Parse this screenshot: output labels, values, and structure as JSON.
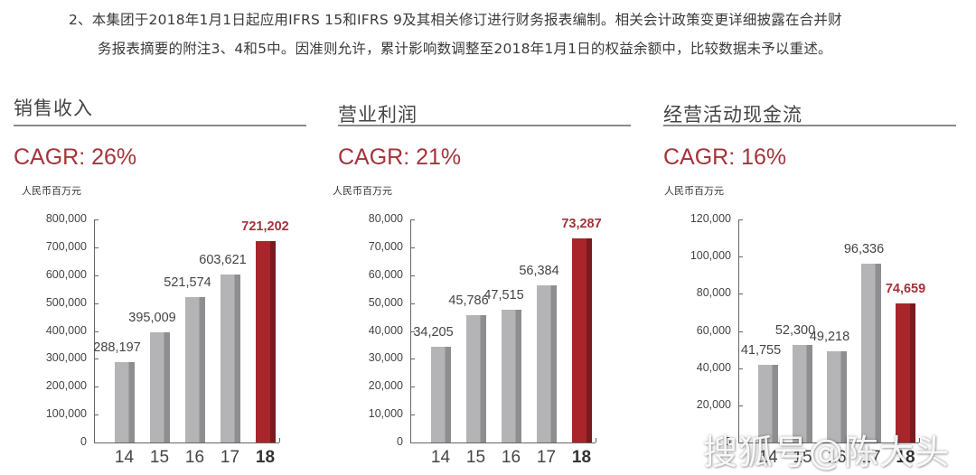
{
  "note": {
    "line1": "2、本集团于2018年1月1日起应用IFRS 15和IFRS 9及其相关修订进行财务报表编制。相关会计政策变更详细披露在合并财",
    "line2": "务报表摘要的附注3、4和5中。因准则允许，累计影响数调整至2018年1月1日的权益余额中，比较数据未予以重述。"
  },
  "colors": {
    "accent_red": "#a8262b",
    "bar_gray": "#b4b4b6",
    "cagr_text": "#a4343a"
  },
  "watermark": "搜狐号@陈大头",
  "chart_data": [
    {
      "type": "bar",
      "title": "销售收入",
      "subtitle": "CAGR: 26%",
      "ylabel": "人民币百万元",
      "xlabel": "",
      "categories": [
        "14",
        "15",
        "16",
        "17",
        "18"
      ],
      "values": [
        288197,
        395009,
        521574,
        603621,
        721202
      ],
      "value_labels": [
        "288,197",
        "395,009",
        "521,574",
        "603,621",
        "721,202"
      ],
      "highlight_index": 4,
      "ylim": [
        0,
        800000
      ],
      "yticks": [
        "0",
        "100,000",
        "200,000",
        "300,000",
        "400,000",
        "500,000",
        "600,000",
        "700,000",
        "800,000"
      ],
      "grid": false,
      "legend": "none"
    },
    {
      "type": "bar",
      "title": "营业利润",
      "subtitle": "CAGR: 21%",
      "ylabel": "人民币百万元",
      "xlabel": "",
      "categories": [
        "14",
        "15",
        "16",
        "17",
        "18"
      ],
      "values": [
        34205,
        45786,
        47515,
        56384,
        73287
      ],
      "value_labels": [
        "34,205",
        "45,786",
        "47,515",
        "56,384",
        "73,287"
      ],
      "highlight_index": 4,
      "ylim": [
        0,
        80000
      ],
      "yticks": [
        "0",
        "10,000",
        "20,000",
        "30,000",
        "40,000",
        "50,000",
        "60,000",
        "70,000",
        "80,000"
      ],
      "grid": false,
      "legend": "none"
    },
    {
      "type": "bar",
      "title": "经营活动现金流",
      "subtitle": "CAGR: 16%",
      "ylabel": "人民币百万元",
      "xlabel": "",
      "categories": [
        "14",
        "15",
        "16",
        "17",
        "18"
      ],
      "values": [
        41755,
        52300,
        49218,
        96336,
        74659
      ],
      "value_labels": [
        "41,755",
        "52,300",
        "49,218",
        "96,336",
        "74,659"
      ],
      "highlight_index": 4,
      "ylim": [
        0,
        120000
      ],
      "yticks": [
        "0",
        "20,000",
        "40,000",
        "60,000",
        "80,000",
        "100,000",
        "120,000"
      ],
      "grid": false,
      "legend": "none"
    }
  ]
}
